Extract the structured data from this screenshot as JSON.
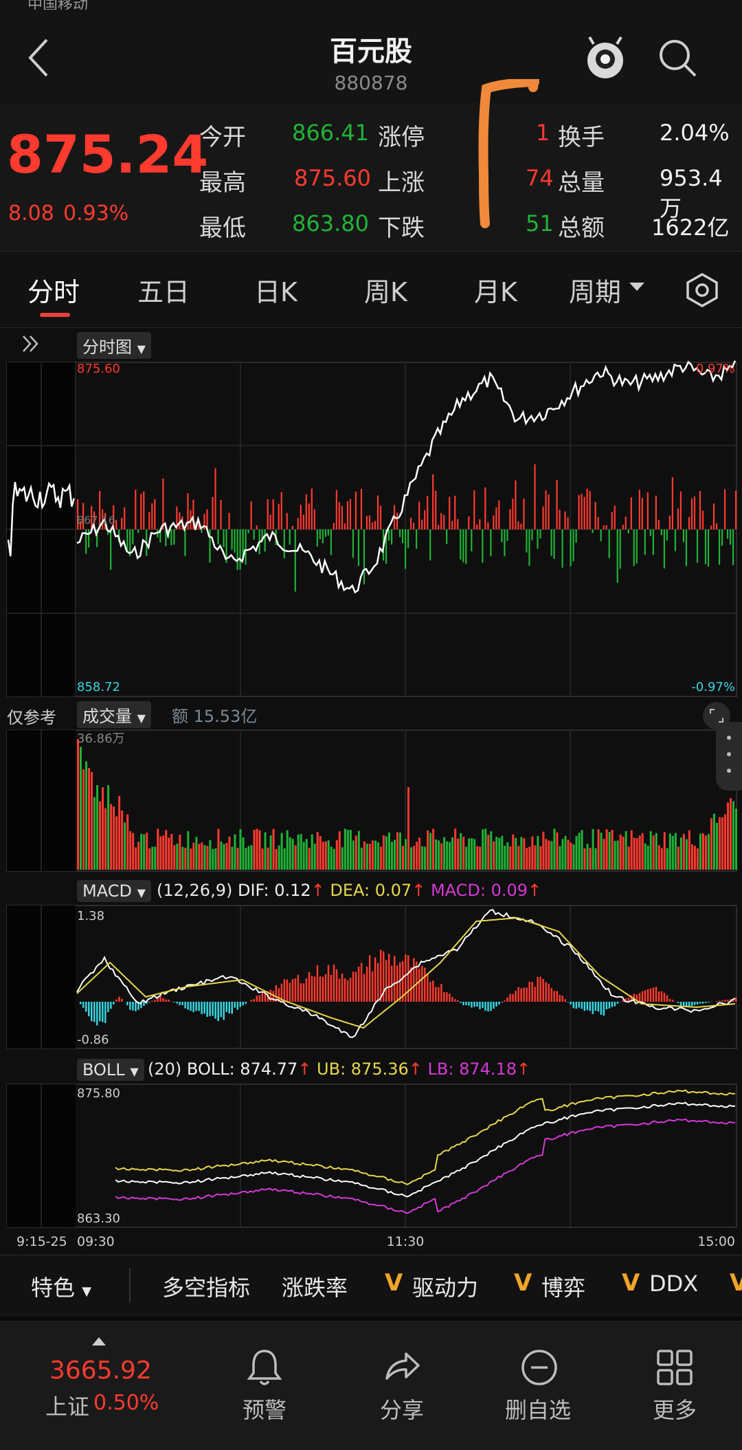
{
  "status_bar": {
    "carrier": "中国移动"
  },
  "header": {
    "title": "百元股",
    "code": "880878"
  },
  "quote": {
    "price": "875.24",
    "change": "8.08",
    "change_pct": "0.93%",
    "rows": [
      {
        "l1": "今开",
        "v1": "866.41",
        "l2": "涨停",
        "v2": "1",
        "l3": "换手",
        "v3": "2.04%"
      },
      {
        "l1": "最高",
        "v1": "875.60",
        "l2": "上涨",
        "v2": "74",
        "l3": "总量",
        "v3": "953.4万"
      },
      {
        "l1": "最低",
        "v1": "863.80",
        "l2": "下跌",
        "v2": "51",
        "l3": "总额",
        "v3": "1622亿"
      }
    ]
  },
  "tabs": [
    "分时",
    "五日",
    "日K",
    "周K",
    "月K",
    "周期"
  ],
  "intraday": {
    "label": "分时图",
    "high": "875.60",
    "low": "858.72",
    "high_pct": "0.97%",
    "low_pct": "-0.97%",
    "mid": "867.16"
  },
  "volume": {
    "ref_label": "仅参考",
    "label": "成交量",
    "amount": "额 15.53亿",
    "max": "36.86万"
  },
  "macd": {
    "label": "MACD",
    "params": "(12,26,9)",
    "dif": "DIF: 0.12",
    "dea": "DEA: 0.07",
    "macd": "MACD: 0.09",
    "max": "1.38",
    "min": "-0.86"
  },
  "boll": {
    "label": "BOLL",
    "params": "(20)",
    "boll": "BOLL: 874.77",
    "ub": "UB: 875.36",
    "lb": "LB: 874.18",
    "max": "875.80",
    "min": "863.30"
  },
  "time_axis": {
    "pre": "9:15-25",
    "open": "09:30",
    "mid": "11:30",
    "close": "15:00"
  },
  "toolbar": {
    "first": "特色",
    "items": [
      "多空指标",
      "涨跌率",
      "驱动力",
      "博弈",
      "DDX"
    ]
  },
  "bottom": {
    "index_value": "3665.92",
    "index_name": "上证",
    "index_pct": "0.50%",
    "nav": [
      "预警",
      "分享",
      "删自选",
      "更多"
    ]
  },
  "colors": {
    "up": "#ff3b30",
    "down": "#21b336",
    "accent": "#e8413a",
    "yellow": "#e6d84a",
    "magenta": "#d63ad6",
    "cyan": "#38d6e0"
  }
}
